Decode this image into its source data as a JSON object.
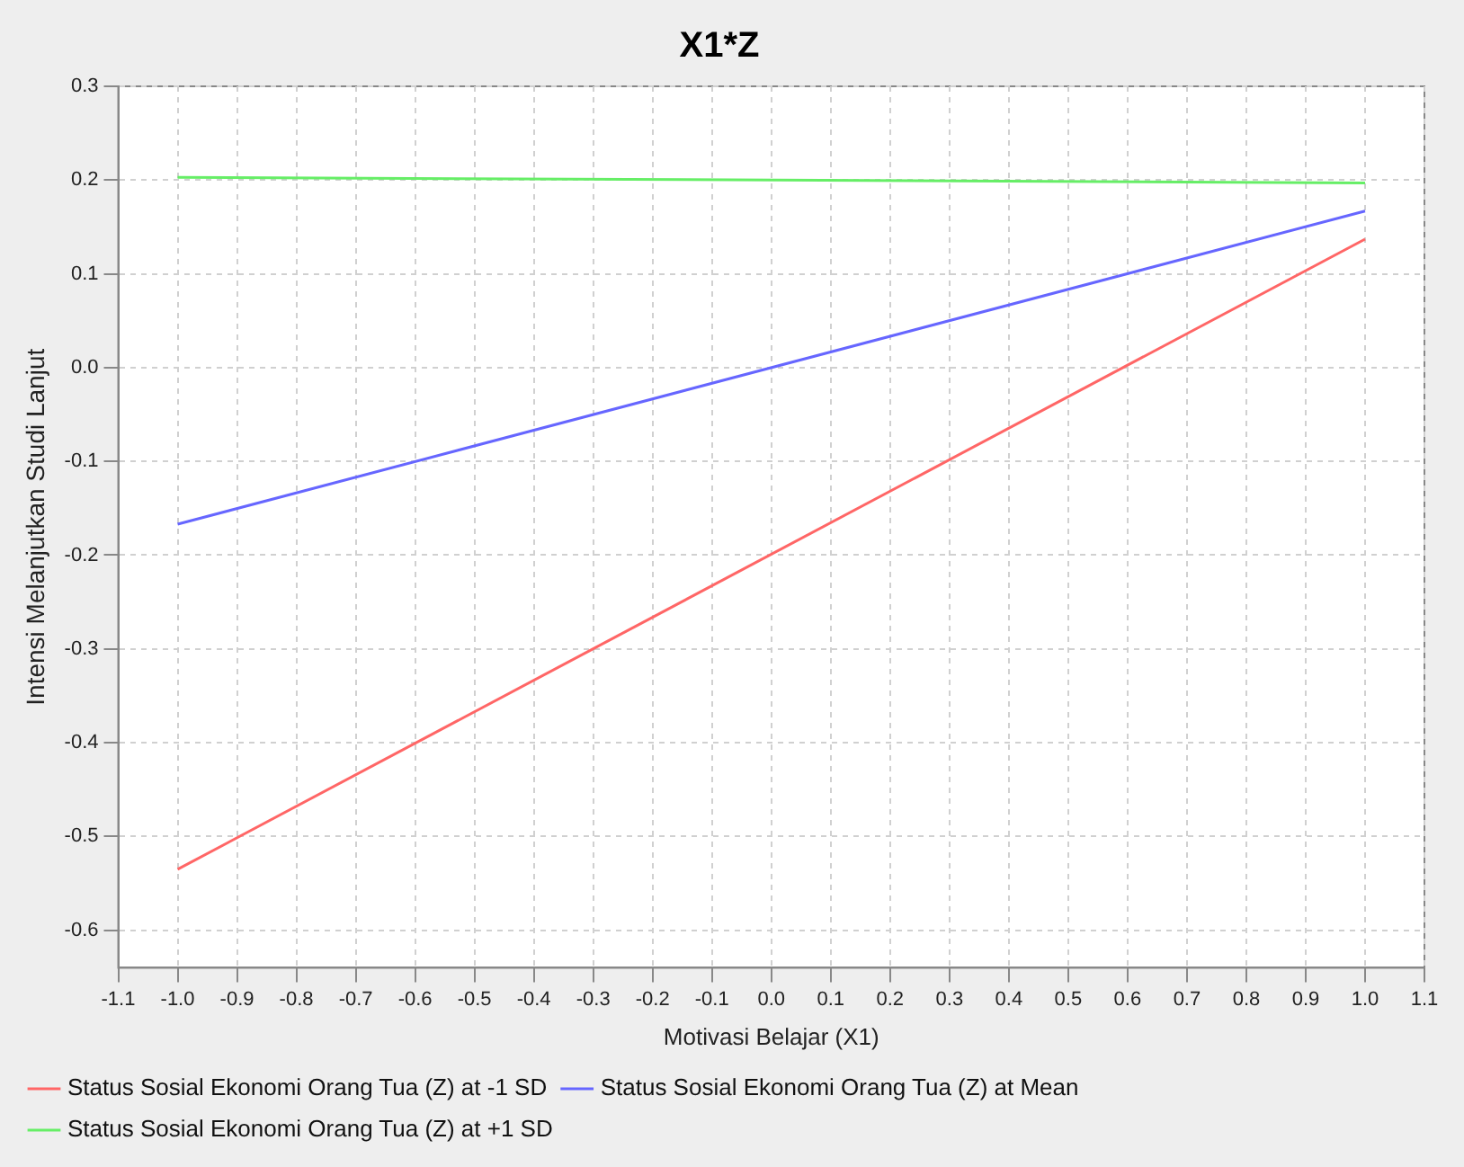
{
  "chart_data": {
    "type": "line",
    "title": "X1*Z",
    "xlabel": "Motivasi Belajar (X1)",
    "ylabel": "Intensi Melanjutkan Studi Lanjut",
    "x": [
      -1.0,
      1.0
    ],
    "series": [
      {
        "name": "Status Sosial Ekonomi Orang Tua (Z) at -1 SD",
        "color": "#ff6666",
        "values": [
          -0.535,
          0.137
        ]
      },
      {
        "name": "Status Sosial Ekonomi Orang Tua (Z) at Mean",
        "color": "#6666ff",
        "values": [
          -0.167,
          0.167
        ]
      },
      {
        "name": "Status Sosial Ekonomi Orang Tua (Z) at +1 SD",
        "color": "#66ee66",
        "values": [
          0.203,
          0.197
        ]
      }
    ],
    "xlim": [
      -1.1,
      1.1
    ],
    "xticks": [
      -1.1,
      {
        "value": -1.0,
        "label": "-1.0"
      },
      -0.9,
      -0.8,
      -0.7,
      -0.6,
      -0.5,
      -0.4,
      -0.3,
      -0.2,
      -0.1,
      {
        "value": 0,
        "label": "0.0"
      },
      0.1,
      0.2,
      0.3,
      0.4,
      0.5,
      0.6,
      0.7,
      0.8,
      0.9,
      {
        "value": 1.0,
        "label": "1.0"
      },
      1.1
    ],
    "ylim": [
      -0.64,
      0.3
    ],
    "yticks": [
      -0.6,
      -0.5,
      -0.4,
      -0.3,
      -0.2,
      -0.1,
      {
        "value": 0,
        "label": "0.0"
      },
      0.1,
      0.2,
      0.3
    ],
    "grid": true,
    "legend": "bottom",
    "marker": "none",
    "line_style": "solid"
  }
}
